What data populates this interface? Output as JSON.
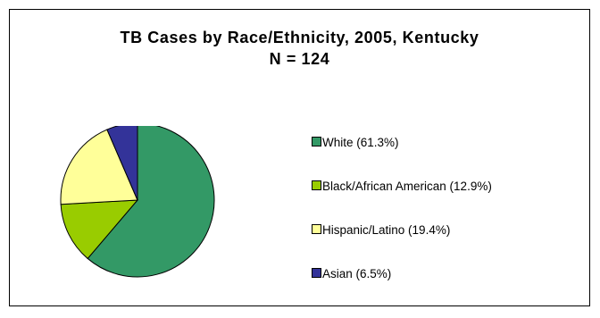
{
  "chart_data": {
    "type": "pie",
    "title": "TB Cases by Race/Ethnicity, 2005, Kentucky",
    "subtitle": "N = 124",
    "categories": [
      "White",
      "Black/African American",
      "Hispanic/Latino",
      "Asian"
    ],
    "values": [
      61.3,
      12.9,
      19.4,
      6.5
    ],
    "legend_labels": [
      "White (61.3%)",
      "Black/African American (12.9%)",
      "Hispanic/Latino (19.4%)",
      "Asian (6.5%)"
    ],
    "colors": [
      "#339966",
      "#99cc00",
      "#ffff99",
      "#333399"
    ],
    "legend_position": "right",
    "unit": "%"
  }
}
